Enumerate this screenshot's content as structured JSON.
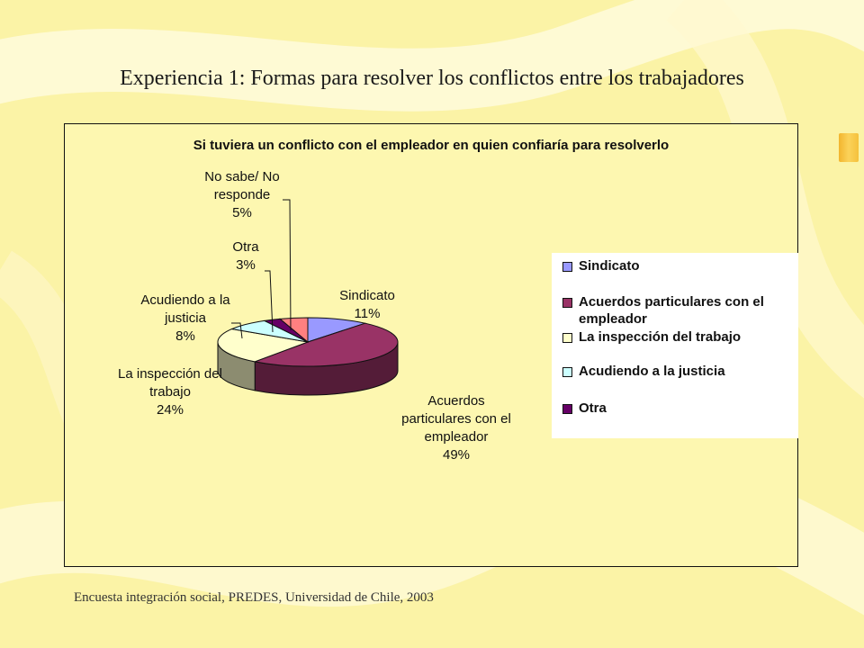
{
  "slide": {
    "title": "Experiencia 1: Formas para resolver los conflictos entre los trabajadores",
    "source": "Encuesta integración social, PREDES, Universidad de Chile, 2003"
  },
  "chart_data": {
    "type": "pie",
    "title": "Si tuviera un conflicto con el empleador en quien confiaría para resolverlo",
    "slices": [
      {
        "name": "Sindicato",
        "label_lines": [
          "Sindicato",
          "11%"
        ],
        "value": 11,
        "color": "#9999ff"
      },
      {
        "name": "Acuerdos particulares con el empleador",
        "label_lines": [
          "Acuerdos",
          "particulares con el",
          "empleador",
          "49%"
        ],
        "value": 49,
        "color": "#993366"
      },
      {
        "name": "La inspección del trabajo",
        "label_lines": [
          "La inspección del",
          "trabajo",
          "24%"
        ],
        "value": 24,
        "color": "#ffffcc"
      },
      {
        "name": "Acudiendo a la justicia",
        "label_lines": [
          "Acudiendo a la",
          "justicia",
          "8%"
        ],
        "value": 8,
        "color": "#ccffff"
      },
      {
        "name": "Otra",
        "label_lines": [
          "Otra",
          "3%"
        ],
        "value": 3,
        "color": "#660066"
      },
      {
        "name": "No sabe/ No responde",
        "label_lines": [
          "No sabe/ No",
          "responde",
          "5%"
        ],
        "value": 5,
        "color": "#ff8080"
      }
    ],
    "legend": {
      "placement": "right",
      "items": [
        {
          "lines": [
            "Sindicato"
          ],
          "color": "#9999ff"
        },
        {
          "lines": [
            "Acuerdos particulares con el",
            "empleador"
          ],
          "color": "#993366"
        },
        {
          "lines": [
            "La inspección del trabajo"
          ],
          "color": "#ffffcc"
        },
        {
          "lines": [
            "Acudiendo a la justicia"
          ],
          "color": "#ccffff"
        },
        {
          "lines": [
            "Otra"
          ],
          "color": "#660066"
        }
      ]
    }
  }
}
